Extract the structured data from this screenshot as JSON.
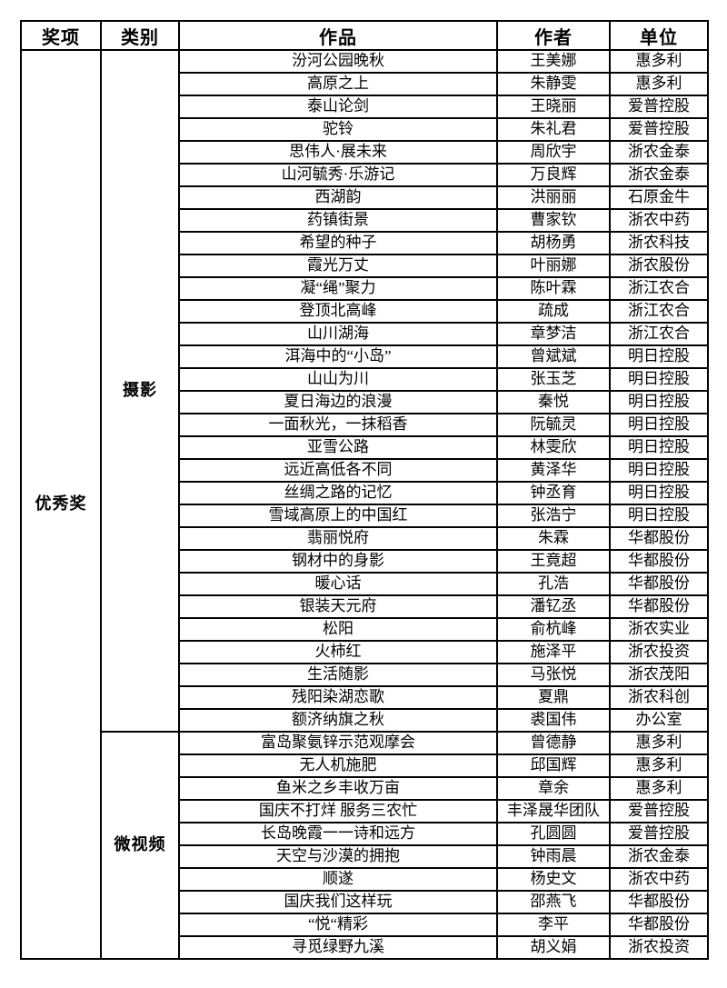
{
  "table": {
    "columns": [
      "奖项",
      "类别",
      "作品",
      "作者",
      "单位"
    ],
    "award": "优秀奖",
    "groups": [
      {
        "category": "摄影",
        "rows": [
          [
            "汾河公园晚秋",
            "王美娜",
            "惠多利"
          ],
          [
            "高原之上",
            "朱静雯",
            "惠多利"
          ],
          [
            "泰山论剑",
            "王晓丽",
            "爱普控股"
          ],
          [
            "驼铃",
            "朱礼君",
            "爱普控股"
          ],
          [
            "思伟人·展未来",
            "周欣宇",
            "浙农金泰"
          ],
          [
            "山河毓秀·乐游记",
            "万良辉",
            "浙农金泰"
          ],
          [
            "西湖韵",
            "洪丽丽",
            "石原金牛"
          ],
          [
            "药镇街景",
            "曹家钦",
            "浙农中药"
          ],
          [
            "希望的种子",
            "胡杨勇",
            "浙农科技"
          ],
          [
            "霞光万丈",
            "叶丽娜",
            "浙农股份"
          ],
          [
            "凝“绳”聚力",
            "陈叶霖",
            "浙江农合"
          ],
          [
            "登顶北高峰",
            "疏成",
            "浙江农合"
          ],
          [
            "山川湖海",
            "章梦洁",
            "浙江农合"
          ],
          [
            "洱海中的“小岛”",
            "曾斌斌",
            "明日控股"
          ],
          [
            "山山为川",
            "张玉芝",
            "明日控股"
          ],
          [
            "夏日海边的浪漫",
            "秦悦",
            "明日控股"
          ],
          [
            "一面秋光，一抹稻香",
            "阮毓灵",
            "明日控股"
          ],
          [
            "亚雪公路",
            "林雯欣",
            "明日控股"
          ],
          [
            "远近高低各不同",
            "黄泽华",
            "明日控股"
          ],
          [
            "丝绸之路的记忆",
            "钟丞育",
            "明日控股"
          ],
          [
            "雪域高原上的中国红",
            "张浩宁",
            "明日控股"
          ],
          [
            "翡丽悦府",
            "朱霖",
            "华都股份"
          ],
          [
            "钢材中的身影",
            "王竟超",
            "华都股份"
          ],
          [
            "暖心话",
            "孔浩",
            "华都股份"
          ],
          [
            "银装天元府",
            "潘钇丞",
            "华都股份"
          ],
          [
            "松阳",
            "俞杭峰",
            "浙农实业"
          ],
          [
            "火柿红",
            "施泽平",
            "浙农投资"
          ],
          [
            "生活随影",
            "马张悦",
            "浙农茂阳"
          ],
          [
            "残阳染湖恋歌",
            "夏鼎",
            "浙农科创"
          ],
          [
            "额济纳旗之秋",
            "裘国伟",
            "办公室"
          ]
        ]
      },
      {
        "category": "微视频",
        "rows": [
          [
            "富岛聚氨锌示范观摩会",
            "曾德静",
            "惠多利"
          ],
          [
            "无人机施肥",
            "邱国辉",
            "惠多利"
          ],
          [
            "鱼米之乡丰收万亩",
            "章余",
            "惠多利"
          ],
          [
            "国庆不打烊 服务三农忙",
            "丰泽晟华团队",
            "爱普控股"
          ],
          [
            "长岛晚霞一一诗和远方",
            "孔圆圆",
            "爱普控股"
          ],
          [
            "天空与沙漠的拥抱",
            "钟雨晨",
            "浙农金泰"
          ],
          [
            "顺遂",
            "杨史文",
            "浙农中药"
          ],
          [
            "国庆我们这样玩",
            "邵燕飞",
            "华都股份"
          ],
          [
            "“悦“精彩",
            "李平",
            "华都股份"
          ],
          [
            "寻觅绿野九溪",
            "胡义娟",
            "浙农投资"
          ]
        ]
      }
    ]
  }
}
